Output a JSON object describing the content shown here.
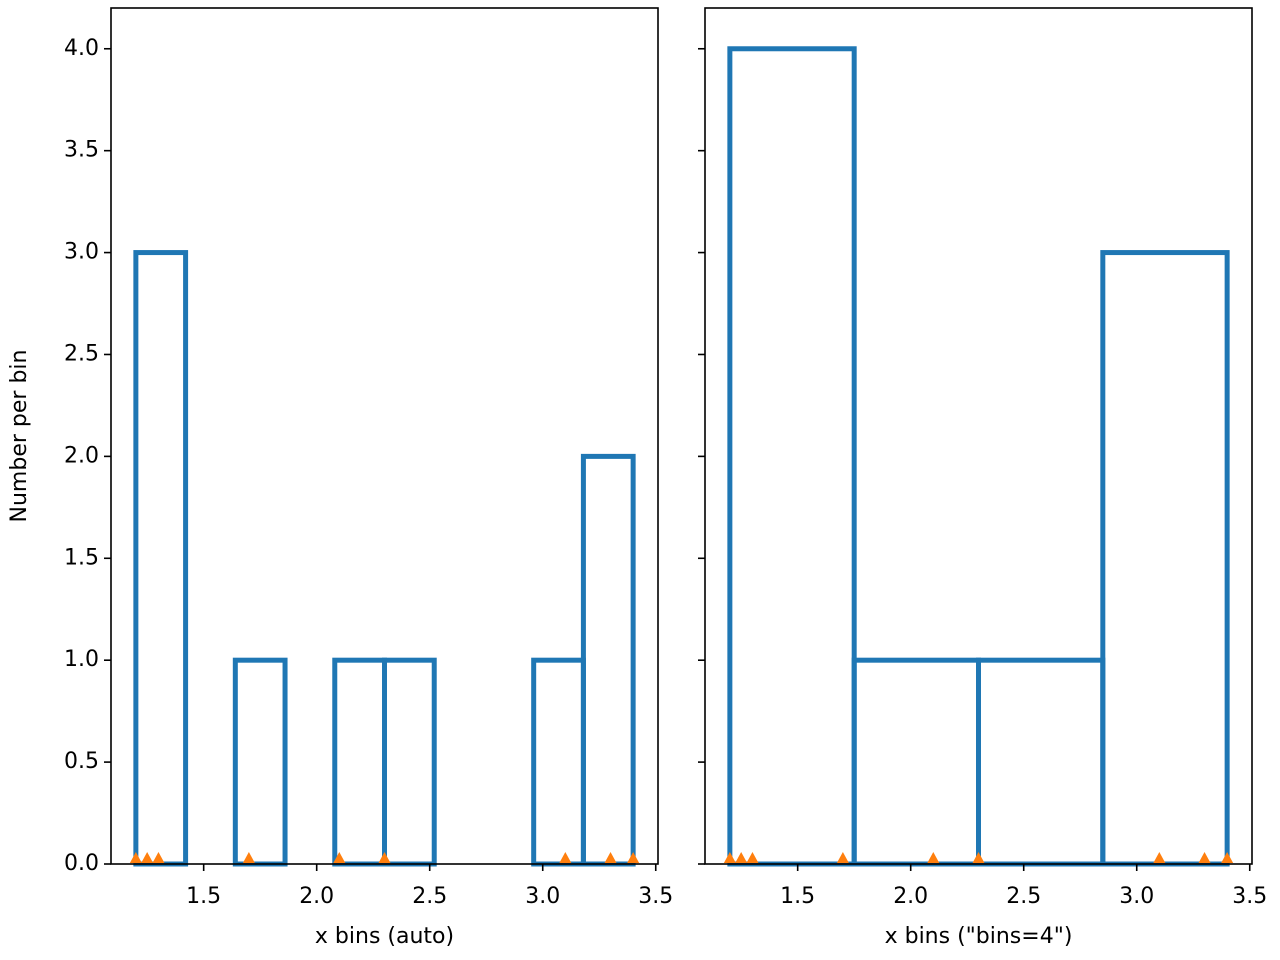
{
  "chart_data": [
    {
      "type": "histogram",
      "xlabel": "x bins (auto)",
      "ylabel": "Number per bin",
      "bins": [
        1.2,
        1.42,
        1.64,
        1.86,
        2.08,
        2.3,
        2.52,
        2.74,
        2.96,
        3.18,
        3.4
      ],
      "values": [
        3,
        0,
        1,
        0,
        1,
        1,
        0,
        0,
        1,
        2
      ],
      "points": [
        1.2,
        1.25,
        1.3,
        1.7,
        2.1,
        2.3,
        3.1,
        3.3,
        3.4
      ],
      "color": "#1f77b4",
      "point_color": "#ff7f0e",
      "xlim": [
        1.09,
        3.51
      ],
      "xticks": [
        1.5,
        {
          "value": 2,
          "label": "2.0"
        },
        2.5,
        {
          "value": 3,
          "label": "3.0"
        },
        3.5
      ],
      "ylim": [
        0,
        4.2
      ],
      "yticks": [
        {
          "value": 0,
          "label": "0.0"
        },
        0.5,
        {
          "value": 1,
          "label": "1.0"
        },
        1.5,
        {
          "value": 2,
          "label": "2.0"
        },
        2.5,
        {
          "value": 3,
          "label": "3.0"
        },
        3.5,
        {
          "value": 4,
          "label": "4.0"
        }
      ],
      "ytick_labels": true
    },
    {
      "type": "histogram",
      "xlabel": "x bins (\"bins=4\")",
      "bins": [
        1.2,
        1.75,
        2.3,
        2.85,
        3.4
      ],
      "values": [
        4,
        1,
        1,
        3
      ],
      "points": [
        1.2,
        1.25,
        1.3,
        1.7,
        2.1,
        2.3,
        3.1,
        3.3,
        3.4
      ],
      "color": "#1f77b4",
      "point_color": "#ff7f0e",
      "xlim": [
        1.09,
        3.51
      ],
      "xticks": [
        1.5,
        {
          "value": 2,
          "label": "2.0"
        },
        2.5,
        {
          "value": 3,
          "label": "3.0"
        },
        3.5
      ],
      "ylim": [
        0,
        4.2
      ],
      "yticks": [
        {
          "value": 0,
          "label": "0.0"
        },
        0.5,
        {
          "value": 1,
          "label": "1.0"
        },
        1.5,
        {
          "value": 2,
          "label": "2.0"
        },
        2.5,
        {
          "value": 3,
          "label": "3.0"
        },
        3.5,
        {
          "value": 4,
          "label": "4.0"
        }
      ],
      "ytick_labels": false
    }
  ]
}
